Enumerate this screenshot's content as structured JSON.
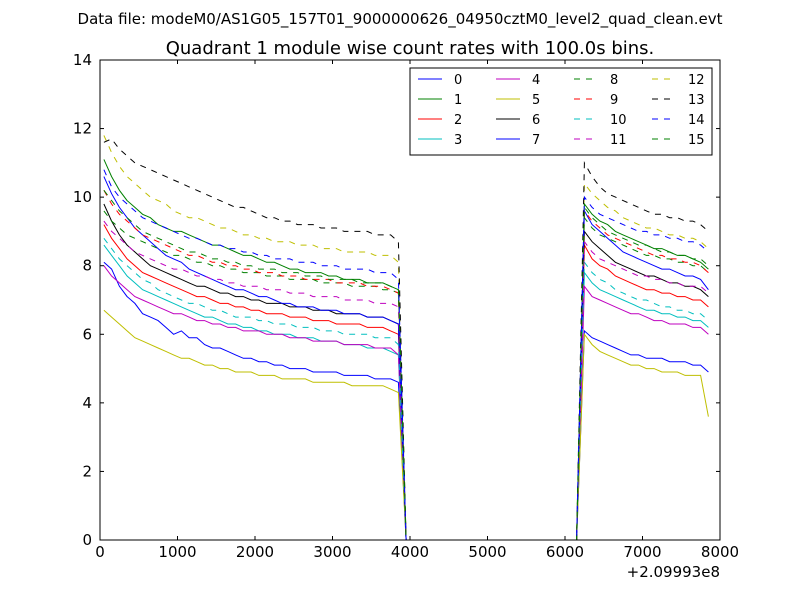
{
  "file_header": "Data file: modeM0/AS1G05_157T01_9000000626_04950cztM0_level2_quad_clean.evt",
  "chart_data": {
    "type": "line",
    "title": "Quadrant 1 module wise count rates with 100.0s bins.",
    "xlabel": "",
    "ylabel": "",
    "x_offset_label": "+2.09993e8",
    "xlim": [
      0,
      8000
    ],
    "ylim": [
      0,
      14
    ],
    "xticks": [
      0,
      1000,
      2000,
      3000,
      4000,
      5000,
      6000,
      7000,
      8000
    ],
    "yticks": [
      0,
      2,
      4,
      6,
      8,
      10,
      12,
      14
    ],
    "grid": false,
    "legend_position": "top-right",
    "legend_columns": 4,
    "x": [
      50,
      150,
      250,
      350,
      450,
      550,
      650,
      750,
      850,
      950,
      1050,
      1150,
      1250,
      1350,
      1450,
      1550,
      1650,
      1750,
      1850,
      1950,
      2050,
      2150,
      2250,
      2350,
      2450,
      2550,
      2650,
      2750,
      2850,
      2950,
      3050,
      3150,
      3250,
      3350,
      3450,
      3550,
      3650,
      3750,
      3850,
      3950,
      4050,
      6150,
      6250,
      6350,
      6450,
      6550,
      6650,
      6750,
      6850,
      6950,
      7050,
      7150,
      7250,
      7350,
      7450,
      7550,
      7650,
      7750,
      7850
    ],
    "series": [
      {
        "name": "0",
        "color": "#0000ff",
        "dash": "solid",
        "values": [
          8.1,
          7.9,
          7.4,
          7.1,
          6.9,
          6.6,
          6.5,
          6.4,
          6.2,
          6.0,
          6.1,
          5.9,
          5.9,
          5.7,
          5.6,
          5.6,
          5.5,
          5.4,
          5.3,
          5.3,
          5.2,
          5.2,
          5.1,
          5.1,
          5.0,
          5.0,
          5.0,
          4.9,
          4.9,
          4.9,
          4.9,
          4.8,
          4.8,
          4.8,
          4.8,
          4.7,
          4.7,
          4.7,
          4.6,
          0,
          0,
          0,
          6.1,
          5.9,
          5.8,
          5.7,
          5.6,
          5.5,
          5.4,
          5.4,
          5.3,
          5.3,
          5.3,
          5.2,
          5.2,
          5.2,
          5.1,
          5.1,
          4.9
        ]
      },
      {
        "name": "1",
        "color": "#008000",
        "dash": "solid",
        "values": [
          11.1,
          10.6,
          10.2,
          9.9,
          9.7,
          9.5,
          9.4,
          9.2,
          9.1,
          9.0,
          9.0,
          8.9,
          8.8,
          8.7,
          8.6,
          8.6,
          8.5,
          8.4,
          8.3,
          8.3,
          8.2,
          8.1,
          8.1,
          8.0,
          7.9,
          7.9,
          7.8,
          7.8,
          7.8,
          7.7,
          7.7,
          7.6,
          7.6,
          7.6,
          7.5,
          7.5,
          7.5,
          7.4,
          7.3,
          0,
          0,
          0,
          9.8,
          9.5,
          9.3,
          9.2,
          9.0,
          8.9,
          8.8,
          8.7,
          8.6,
          8.5,
          8.5,
          8.4,
          8.3,
          8.3,
          8.2,
          8.1,
          7.9
        ]
      },
      {
        "name": "2",
        "color": "#ff0000",
        "dash": "solid",
        "values": [
          9.2,
          8.8,
          8.5,
          8.2,
          8.0,
          7.8,
          7.7,
          7.6,
          7.5,
          7.4,
          7.3,
          7.2,
          7.1,
          7.1,
          7.0,
          6.9,
          6.9,
          6.8,
          6.8,
          6.7,
          6.7,
          6.6,
          6.6,
          6.6,
          6.5,
          6.5,
          6.5,
          6.4,
          6.4,
          6.4,
          6.3,
          6.3,
          6.3,
          6.3,
          6.2,
          6.2,
          6.2,
          6.1,
          6.0,
          0,
          0,
          0,
          8.6,
          8.2,
          8.0,
          7.9,
          7.7,
          7.6,
          7.5,
          7.4,
          7.3,
          7.3,
          7.2,
          7.2,
          7.1,
          7.1,
          7.0,
          7.0,
          6.8
        ]
      },
      {
        "name": "3",
        "color": "#00bfbf",
        "dash": "solid",
        "values": [
          8.6,
          8.3,
          8.0,
          7.7,
          7.5,
          7.3,
          7.2,
          7.1,
          7.0,
          6.9,
          6.8,
          6.7,
          6.6,
          6.5,
          6.5,
          6.4,
          6.3,
          6.3,
          6.2,
          6.2,
          6.1,
          6.1,
          6.0,
          6.0,
          6.0,
          5.9,
          5.9,
          5.9,
          5.8,
          5.8,
          5.8,
          5.7,
          5.7,
          5.7,
          5.6,
          5.6,
          5.6,
          5.5,
          5.4,
          0,
          0,
          0,
          7.8,
          7.5,
          7.3,
          7.2,
          7.1,
          7.0,
          6.9,
          6.8,
          6.7,
          6.7,
          6.6,
          6.6,
          6.5,
          6.5,
          6.4,
          6.4,
          6.2
        ]
      },
      {
        "name": "4",
        "color": "#bf00bf",
        "dash": "solid",
        "values": [
          8.0,
          7.7,
          7.5,
          7.3,
          7.1,
          7.0,
          6.9,
          6.8,
          6.7,
          6.6,
          6.6,
          6.5,
          6.4,
          6.4,
          6.3,
          6.3,
          6.2,
          6.2,
          6.1,
          6.1,
          6.1,
          6.0,
          6.0,
          6.0,
          5.9,
          5.9,
          5.9,
          5.8,
          5.8,
          5.8,
          5.8,
          5.7,
          5.7,
          5.7,
          5.7,
          5.6,
          5.6,
          5.6,
          5.4,
          0,
          0,
          0,
          7.4,
          7.1,
          7.0,
          6.9,
          6.8,
          6.7,
          6.6,
          6.6,
          6.5,
          6.4,
          6.4,
          6.3,
          6.3,
          6.3,
          6.2,
          6.2,
          6.0
        ]
      },
      {
        "name": "5",
        "color": "#bfbf00",
        "dash": "solid",
        "values": [
          6.7,
          6.5,
          6.3,
          6.1,
          5.9,
          5.8,
          5.7,
          5.6,
          5.5,
          5.4,
          5.3,
          5.3,
          5.2,
          5.1,
          5.1,
          5.0,
          5.0,
          4.9,
          4.9,
          4.9,
          4.8,
          4.8,
          4.8,
          4.7,
          4.7,
          4.7,
          4.7,
          4.6,
          4.6,
          4.6,
          4.6,
          4.6,
          4.5,
          4.5,
          4.5,
          4.5,
          4.5,
          4.4,
          4.3,
          0,
          0,
          0,
          6.0,
          5.7,
          5.5,
          5.4,
          5.3,
          5.2,
          5.1,
          5.1,
          5.0,
          5.0,
          4.9,
          4.9,
          4.9,
          4.8,
          4.8,
          4.8,
          3.6
        ]
      },
      {
        "name": "6",
        "color": "#000000",
        "dash": "solid",
        "values": [
          9.8,
          9.3,
          8.9,
          8.6,
          8.4,
          8.2,
          8.0,
          7.9,
          7.8,
          7.7,
          7.6,
          7.5,
          7.4,
          7.4,
          7.3,
          7.2,
          7.2,
          7.1,
          7.1,
          7.0,
          7.0,
          6.9,
          6.9,
          6.9,
          6.8,
          6.8,
          6.8,
          6.7,
          6.7,
          6.7,
          6.6,
          6.6,
          6.6,
          6.6,
          6.5,
          6.5,
          6.5,
          6.4,
          6.3,
          0,
          0,
          0,
          9.0,
          8.7,
          8.5,
          8.3,
          8.1,
          8.0,
          7.9,
          7.8,
          7.7,
          7.7,
          7.6,
          7.5,
          7.5,
          7.4,
          7.4,
          7.3,
          7.1
        ]
      },
      {
        "name": "7",
        "color": "#0000ff",
        "dash": "solid",
        "values": [
          10.6,
          10.1,
          9.7,
          9.4,
          9.1,
          8.9,
          8.7,
          8.5,
          8.3,
          8.2,
          8.1,
          7.9,
          7.8,
          7.7,
          7.6,
          7.5,
          7.4,
          7.3,
          7.3,
          7.2,
          7.1,
          7.1,
          7.0,
          6.9,
          6.9,
          6.8,
          6.8,
          6.8,
          6.7,
          6.7,
          6.7,
          6.6,
          6.6,
          6.6,
          6.5,
          6.5,
          6.5,
          6.4,
          6.3,
          0,
          0,
          0,
          9.6,
          9.2,
          9.0,
          8.8,
          8.6,
          8.4,
          8.3,
          8.2,
          8.1,
          8.0,
          7.9,
          7.9,
          7.8,
          7.7,
          7.7,
          7.6,
          7.3
        ]
      },
      {
        "name": "8",
        "color": "#008000",
        "dash": "dashed",
        "values": [
          9.6,
          9.3,
          9.1,
          8.9,
          8.8,
          8.7,
          8.6,
          8.5,
          8.4,
          8.3,
          8.3,
          8.2,
          8.1,
          8.1,
          8.0,
          8.0,
          7.9,
          7.9,
          7.8,
          7.8,
          7.8,
          7.7,
          7.7,
          7.7,
          7.6,
          7.6,
          7.6,
          7.6,
          7.5,
          7.5,
          7.5,
          7.5,
          7.4,
          7.4,
          7.4,
          7.4,
          7.3,
          7.3,
          7.2,
          0,
          0,
          0,
          9.4,
          9.1,
          8.9,
          8.8,
          8.7,
          8.6,
          8.5,
          8.4,
          8.3,
          8.3,
          8.2,
          8.2,
          8.1,
          8.1,
          8.0,
          8.0,
          7.8
        ]
      },
      {
        "name": "9",
        "color": "#ff0000",
        "dash": "dashed",
        "values": [
          10.2,
          9.8,
          9.5,
          9.3,
          9.1,
          8.9,
          8.8,
          8.7,
          8.6,
          8.5,
          8.4,
          8.3,
          8.3,
          8.2,
          8.1,
          8.1,
          8.0,
          8.0,
          7.9,
          7.9,
          7.8,
          7.8,
          7.8,
          7.7,
          7.7,
          7.7,
          7.6,
          7.6,
          7.6,
          7.6,
          7.5,
          7.5,
          7.5,
          7.5,
          7.4,
          7.4,
          7.4,
          7.3,
          7.2,
          0,
          0,
          0,
          9.6,
          9.3,
          9.1,
          8.9,
          8.8,
          8.7,
          8.6,
          8.5,
          8.4,
          8.3,
          8.3,
          8.2,
          8.2,
          8.1,
          8.1,
          8.0,
          7.8
        ]
      },
      {
        "name": "10",
        "color": "#00bfbf",
        "dash": "dashed",
        "values": [
          8.8,
          8.5,
          8.2,
          8.0,
          7.8,
          7.6,
          7.5,
          7.3,
          7.2,
          7.1,
          7.0,
          6.9,
          6.9,
          6.8,
          6.7,
          6.7,
          6.6,
          6.5,
          6.5,
          6.5,
          6.4,
          6.4,
          6.3,
          6.3,
          6.3,
          6.2,
          6.2,
          6.2,
          6.1,
          6.1,
          6.1,
          6.0,
          6.0,
          6.0,
          6.0,
          5.9,
          5.9,
          5.9,
          5.7,
          0,
          0,
          0,
          8.1,
          7.8,
          7.6,
          7.5,
          7.3,
          7.2,
          7.1,
          7.0,
          7.0,
          6.9,
          6.8,
          6.8,
          6.7,
          6.7,
          6.6,
          6.6,
          6.4
        ]
      },
      {
        "name": "11",
        "color": "#bf00bf",
        "dash": "dashed",
        "values": [
          9.3,
          9.0,
          8.8,
          8.6,
          8.4,
          8.3,
          8.2,
          8.1,
          8.0,
          7.9,
          7.9,
          7.8,
          7.7,
          7.7,
          7.6,
          7.6,
          7.5,
          7.5,
          7.4,
          7.4,
          7.4,
          7.3,
          7.3,
          7.3,
          7.2,
          7.2,
          7.2,
          7.1,
          7.1,
          7.1,
          7.1,
          7.0,
          7.0,
          7.0,
          7.0,
          6.9,
          6.9,
          6.9,
          6.8,
          0,
          0,
          0,
          8.7,
          8.4,
          8.2,
          8.1,
          8.0,
          7.9,
          7.8,
          7.7,
          7.7,
          7.6,
          7.6,
          7.5,
          7.5,
          7.4,
          7.4,
          7.4,
          7.2
        ]
      },
      {
        "name": "12",
        "color": "#bfbf00",
        "dash": "dashed",
        "values": [
          11.8,
          11.3,
          10.9,
          10.6,
          10.4,
          10.2,
          10.0,
          9.9,
          9.8,
          9.6,
          9.5,
          9.4,
          9.4,
          9.3,
          9.2,
          9.1,
          9.1,
          9.0,
          8.9,
          8.9,
          8.8,
          8.8,
          8.7,
          8.7,
          8.7,
          8.6,
          8.6,
          8.6,
          8.5,
          8.5,
          8.5,
          8.4,
          8.4,
          8.4,
          8.4,
          8.3,
          8.3,
          8.3,
          8.1,
          0,
          0,
          0,
          10.4,
          10.1,
          9.9,
          9.7,
          9.6,
          9.4,
          9.3,
          9.2,
          9.1,
          9.1,
          9.0,
          8.9,
          8.9,
          8.8,
          8.8,
          8.7,
          8.5
        ]
      },
      {
        "name": "13",
        "color": "#000000",
        "dash": "dashed",
        "values": [
          11.6,
          11.7,
          11.4,
          11.2,
          11.0,
          10.9,
          10.8,
          10.7,
          10.6,
          10.5,
          10.4,
          10.3,
          10.2,
          10.1,
          10.0,
          9.9,
          9.8,
          9.7,
          9.7,
          9.6,
          9.5,
          9.4,
          9.4,
          9.3,
          9.3,
          9.2,
          9.2,
          9.2,
          9.1,
          9.1,
          9.1,
          9.0,
          9.0,
          9.0,
          9.0,
          8.9,
          8.9,
          8.9,
          8.7,
          0,
          0,
          0,
          11.0,
          10.6,
          10.3,
          10.1,
          10.0,
          9.9,
          9.8,
          9.7,
          9.6,
          9.5,
          9.5,
          9.4,
          9.4,
          9.3,
          9.3,
          9.2,
          9.0
        ]
      },
      {
        "name": "14",
        "color": "#0000ff",
        "dash": "dashed",
        "values": [
          10.8,
          10.3,
          10.0,
          9.8,
          9.6,
          9.4,
          9.3,
          9.2,
          9.1,
          9.0,
          8.9,
          8.8,
          8.8,
          8.7,
          8.6,
          8.6,
          8.5,
          8.5,
          8.4,
          8.4,
          8.3,
          8.3,
          8.2,
          8.2,
          8.2,
          8.1,
          8.1,
          8.1,
          8.0,
          8.0,
          8.0,
          7.9,
          7.9,
          7.9,
          7.9,
          7.8,
          7.8,
          7.8,
          7.6,
          0,
          0,
          0,
          10.0,
          9.7,
          9.5,
          9.4,
          9.3,
          9.2,
          9.1,
          9.0,
          9.0,
          8.9,
          8.9,
          8.8,
          8.8,
          8.7,
          8.7,
          8.6,
          8.4
        ]
      },
      {
        "name": "15",
        "color": "#008000",
        "dash": "dashed",
        "values": [
          10.2,
          9.9,
          9.6,
          9.4,
          9.2,
          9.0,
          8.9,
          8.8,
          8.7,
          8.6,
          8.5,
          8.4,
          8.4,
          8.3,
          8.2,
          8.2,
          8.1,
          8.1,
          8.0,
          8.0,
          7.9,
          7.9,
          7.9,
          7.8,
          7.8,
          7.8,
          7.7,
          7.7,
          7.7,
          7.6,
          7.6,
          7.6,
          7.6,
          7.5,
          7.5,
          7.5,
          7.5,
          7.4,
          7.3,
          0,
          0,
          0,
          9.7,
          9.4,
          9.2,
          9.0,
          8.9,
          8.8,
          8.7,
          8.6,
          8.6,
          8.5,
          8.4,
          8.4,
          8.3,
          8.3,
          8.2,
          8.2,
          8.0
        ]
      }
    ]
  }
}
